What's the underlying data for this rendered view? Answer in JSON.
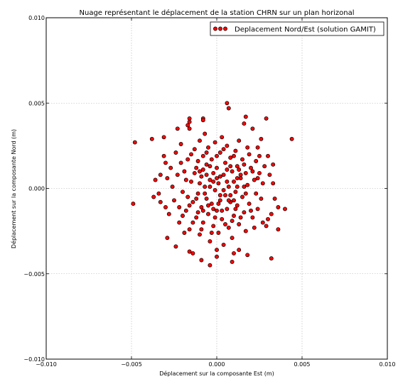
{
  "chart_data": {
    "type": "scatter",
    "title": "Nuage représentant le déplacement de la station CHRN sur un plan horizonal",
    "xlabel": "Déplacement sur la composante Est (m)",
    "ylabel": "Déplacement sur la composante Nord (m)",
    "xlim": [
      -0.01,
      0.01
    ],
    "ylim": [
      -0.01,
      0.01
    ],
    "xticks": [
      -0.01,
      -0.005,
      0.0,
      0.005,
      0.01
    ],
    "yticks": [
      -0.01,
      -0.005,
      0.0,
      0.005,
      0.01
    ],
    "xtick_labels": [
      "−0.010",
      "−0.005",
      "0.000",
      "0.005",
      "0.010"
    ],
    "ytick_labels": [
      "−0.010",
      "−0.005",
      "0.000",
      "0.005",
      "0.010"
    ],
    "grid": true,
    "legend_position": "top-right",
    "marker_color": "#ff0000",
    "marker_edge_color": "#000000",
    "series": [
      {
        "name": "Deplacement Nord/Est (solution GAMIT)",
        "points": [
          [
            -0.0048,
            0.0027
          ],
          [
            -0.0049,
            -0.0009
          ],
          [
            0.0044,
            0.0029
          ],
          [
            -0.0038,
            0.0029
          ],
          [
            0.0006,
            0.005
          ],
          [
            0.0007,
            0.0047
          ],
          [
            -0.0016,
            0.0041
          ],
          [
            -0.0016,
            0.0039
          ],
          [
            -0.0008,
            0.0041
          ],
          [
            -0.0008,
            0.004
          ],
          [
            0.0017,
            0.0042
          ],
          [
            0.0029,
            0.0041
          ],
          [
            -0.0017,
            0.0037
          ],
          [
            -0.0016,
            0.0035
          ],
          [
            -0.0023,
            0.0035
          ],
          [
            -0.0031,
            0.003
          ],
          [
            0.0016,
            0.0038
          ],
          [
            0.0021,
            0.0035
          ],
          [
            0.0026,
            0.0029
          ],
          [
            0.0024,
            0.0024
          ],
          [
            -0.0031,
            0.0019
          ],
          [
            -0.003,
            0.0015
          ],
          [
            -0.0033,
            0.0008
          ],
          [
            -0.0036,
            0.0005
          ],
          [
            -0.0029,
            0.0006
          ],
          [
            -0.0034,
            -0.0003
          ],
          [
            -0.0037,
            -0.0005
          ],
          [
            -0.003,
            -0.0011
          ],
          [
            -0.0033,
            -0.0008
          ],
          [
            -0.0028,
            -0.0015
          ],
          [
            -0.0029,
            -0.0029
          ],
          [
            -0.0024,
            -0.0034
          ],
          [
            -0.0019,
            -0.0026
          ],
          [
            -0.0016,
            -0.0037
          ],
          [
            -0.0014,
            -0.0038
          ],
          [
            -0.0009,
            -0.0042
          ],
          [
            -0.0004,
            -0.0045
          ],
          [
            0.0,
            -0.004
          ],
          [
            0.0,
            -0.0036
          ],
          [
            0.001,
            -0.0038
          ],
          [
            0.0009,
            -0.0043
          ],
          [
            0.0013,
            -0.0036
          ],
          [
            0.0018,
            -0.0039
          ],
          [
            0.0032,
            -0.0041
          ],
          [
            0.003,
            -0.0018
          ],
          [
            0.0032,
            -0.0015
          ],
          [
            0.0036,
            -0.0011
          ],
          [
            0.004,
            -0.0012
          ],
          [
            0.0036,
            -0.0024
          ],
          [
            0.0033,
            0.0003
          ],
          [
            0.0031,
            0.0008
          ],
          [
            0.0033,
            0.0014
          ],
          [
            0.003,
            0.0019
          ],
          [
            0.0034,
            -0.0006
          ],
          [
            0.0029,
            -0.0022
          ],
          [
            -0.0027,
            0.0012
          ],
          [
            -0.0025,
            -0.0007
          ],
          [
            -0.0024,
            0.0021
          ],
          [
            -0.0022,
            -0.002
          ],
          [
            -0.0021,
            0.0026
          ],
          [
            -0.002,
            -0.0002
          ],
          [
            -0.0019,
            0.001
          ],
          [
            -0.0018,
            -0.0013
          ],
          [
            -0.0017,
            0.0017
          ],
          [
            -0.0016,
            -0.0024
          ],
          [
            -0.0015,
            0.0004
          ],
          [
            -0.0014,
            -0.0008
          ],
          [
            -0.0013,
            0.0023
          ],
          [
            -0.0012,
            -0.0017
          ],
          [
            -0.0012,
            0.0012
          ],
          [
            -0.0011,
            -0.0003
          ],
          [
            -0.001,
            0.0028
          ],
          [
            -0.001,
            -0.0027
          ],
          [
            -0.0009,
            0.0007
          ],
          [
            -0.0009,
            -0.0011
          ],
          [
            -0.0008,
            0.0019
          ],
          [
            -0.0008,
            -0.002
          ],
          [
            -0.0007,
            0.0001
          ],
          [
            -0.0007,
            0.0032
          ],
          [
            -0.0006,
            -0.0006
          ],
          [
            -0.0006,
            0.0014
          ],
          [
            -0.0005,
            -0.0015
          ],
          [
            -0.0005,
            0.0024
          ],
          [
            -0.0004,
            -0.0031
          ],
          [
            -0.0004,
            0.0005
          ],
          [
            -0.0003,
            -0.0009
          ],
          [
            -0.0003,
            0.0017
          ],
          [
            -0.0002,
            -0.0022
          ],
          [
            -0.0002,
            0.0009
          ],
          [
            -0.0001,
            -0.0001
          ],
          [
            -0.0001,
            0.0027
          ],
          [
            0.0,
            -0.0013
          ],
          [
            0.0,
            0.0012
          ],
          [
            0.0001,
            -0.0026
          ],
          [
            0.0001,
            0.0003
          ],
          [
            0.0002,
            0.0021
          ],
          [
            0.0002,
            -0.0007
          ],
          [
            0.0003,
            0.003
          ],
          [
            0.0003,
            -0.0018
          ],
          [
            0.0004,
            0.0008
          ],
          [
            0.0004,
            -0.0033
          ],
          [
            0.0005,
            0.0015
          ],
          [
            0.0005,
            -0.0004
          ],
          [
            0.0006,
            0.0025
          ],
          [
            0.0006,
            -0.0012
          ],
          [
            0.0007,
            0.0001
          ],
          [
            0.0007,
            -0.0023
          ],
          [
            0.0008,
            0.0018
          ],
          [
            0.0008,
            -0.0008
          ],
          [
            0.0009,
            0.001
          ],
          [
            0.0009,
            -0.0029
          ],
          [
            0.001,
            0.0004
          ],
          [
            0.001,
            -0.0016
          ],
          [
            0.0011,
            0.0022
          ],
          [
            0.0011,
            -0.0002
          ],
          [
            0.0012,
            0.0013
          ],
          [
            0.0012,
            -0.001
          ],
          [
            0.0013,
            0.0028
          ],
          [
            0.0013,
            -0.0021
          ],
          [
            0.0014,
            0.0006
          ],
          [
            0.0015,
            -0.0005
          ],
          [
            0.0015,
            0.0017
          ],
          [
            0.0016,
            -0.0014
          ],
          [
            0.0017,
            0.0009
          ],
          [
            0.0017,
            -0.0025
          ],
          [
            0.0018,
            0.0002
          ],
          [
            0.0019,
            0.002
          ],
          [
            0.0019,
            -0.0009
          ],
          [
            0.002,
            0.0012
          ],
          [
            0.0021,
            -0.0017
          ],
          [
            0.0022,
            0.0005
          ],
          [
            0.0023,
            0.0016
          ],
          [
            0.0023,
            -0.0003
          ],
          [
            0.0024,
            -0.0012
          ],
          [
            0.0025,
            0.0009
          ],
          [
            0.0026,
            -0.0006
          ],
          [
            0.0027,
            0.0003
          ],
          [
            0.0027,
            -0.002
          ],
          [
            0.0028,
            0.0013
          ],
          [
            -0.0026,
            0.0001
          ],
          [
            -0.0023,
            0.0008
          ],
          [
            -0.0022,
            -0.0011
          ],
          [
            -0.0021,
            0.0015
          ],
          [
            -0.002,
            -0.0016
          ],
          [
            -0.0018,
            0.0005
          ],
          [
            -0.0017,
            -0.0005
          ],
          [
            -0.0015,
            0.002
          ],
          [
            -0.0014,
            -0.002
          ],
          [
            -0.0013,
            0.0009
          ],
          [
            -0.0011,
            0.0016
          ],
          [
            -0.0011,
            -0.0014
          ],
          [
            -0.001,
            0.0003
          ],
          [
            -0.0009,
            -0.0024
          ],
          [
            -0.0008,
            0.0011
          ],
          [
            -0.0007,
            -0.0003
          ],
          [
            -0.0006,
            0.0021
          ],
          [
            -0.0005,
            -0.001
          ],
          [
            -0.0004,
            0.0013
          ],
          [
            -0.0003,
            -0.0026
          ],
          [
            -0.0002,
            0.0004
          ],
          [
            -0.0001,
            -0.0017
          ],
          [
            0.0,
            0.0019
          ],
          [
            0.0001,
            -0.0009
          ],
          [
            0.0002,
            0.0007
          ],
          [
            0.0003,
            -0.0013
          ],
          [
            0.0004,
            0.0023
          ],
          [
            0.0005,
            -0.0021
          ],
          [
            0.0006,
            0.0004
          ],
          [
            0.0007,
            -0.0007
          ],
          [
            0.0008,
            0.0013
          ],
          [
            0.0009,
            -0.0019
          ],
          [
            0.001,
            0.0019
          ],
          [
            0.0011,
            -0.0012
          ],
          [
            0.0012,
            0.0001
          ],
          [
            0.0013,
            0.0011
          ],
          [
            0.0014,
            -0.0017
          ],
          [
            0.0016,
            0.0014
          ],
          [
            0.0017,
            -0.0003
          ],
          [
            0.0018,
            0.0024
          ],
          [
            0.002,
            -0.0013
          ],
          [
            0.0021,
            0.001
          ],
          [
            0.0022,
            -0.0023
          ],
          [
            0.0024,
            0.0006
          ],
          [
            0.0025,
            0.0019
          ],
          [
            -0.0012,
            -0.0006
          ],
          [
            -0.0008,
            -0.0013
          ],
          [
            -0.0004,
            0.0001
          ],
          [
            0.0,
            0.0006
          ],
          [
            0.0004,
            -0.0001
          ],
          [
            0.0008,
            -0.0004
          ],
          [
            0.0012,
            0.0006
          ],
          [
            0.0016,
            0.0001
          ],
          [
            -0.0006,
            0.0008
          ],
          [
            0.0002,
            -0.0004
          ],
          [
            0.0006,
            0.0011
          ],
          [
            -0.0002,
            -0.0012
          ],
          [
            0.001,
            -0.0007
          ],
          [
            -0.001,
            0.001
          ],
          [
            0.0014,
            0.0008
          ],
          [
            -0.0016,
            -0.001
          ]
        ]
      }
    ]
  }
}
